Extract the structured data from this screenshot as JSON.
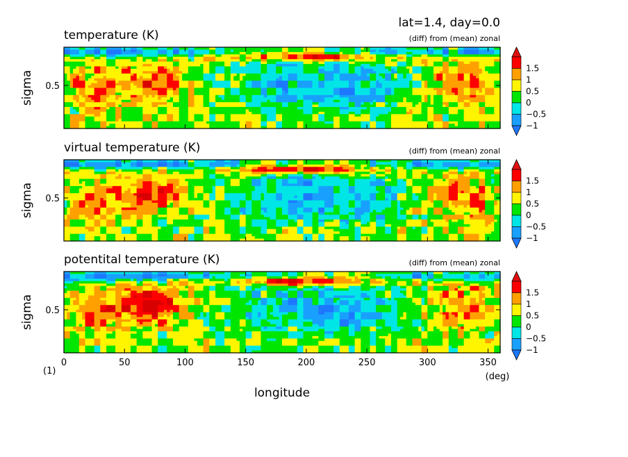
{
  "header": {
    "info": "lat=1.4, day=0.0",
    "corner_label": "(1)"
  },
  "axes": {
    "xlabel": "longitude",
    "xunit": "(deg)",
    "ylabel": "sigma",
    "xticks": [
      0,
      50,
      100,
      150,
      200,
      250,
      300,
      350
    ],
    "xtick_labels": [
      "0",
      "50",
      "100",
      "150",
      "200",
      "250",
      "300",
      "350"
    ],
    "ytick_label": "0.5"
  },
  "palette": {
    "levels": [
      -1.5,
      -1,
      -0.5,
      0,
      0.5,
      1,
      1.5
    ],
    "labels": [
      "1.5",
      "1",
      "0.5",
      "0",
      "−0.5",
      "−1"
    ],
    "colors": [
      "#1e78ff",
      "#19a0ff",
      "#00e6e6",
      "#00e600",
      "#fff500",
      "#ffa000",
      "#ff0000",
      "#d80000"
    ],
    "low_arrow_color": "#1e78ff",
    "high_arrow_color": "#e01010"
  },
  "chart_data": [
    {
      "type": "heatmap",
      "title": "temperature (K)",
      "subtitle": "(diff) from (mean) zonal",
      "xlabel": "longitude",
      "ylabel": "sigma",
      "xlim": [
        0,
        360
      ],
      "ylim": [
        1,
        0
      ],
      "variant": 0
    },
    {
      "type": "heatmap",
      "title": "virtual temperature (K)",
      "subtitle": "(diff) from (mean) zonal",
      "xlabel": "longitude",
      "ylabel": "sigma",
      "xlim": [
        0,
        360
      ],
      "ylim": [
        1,
        0
      ],
      "variant": 1
    },
    {
      "type": "heatmap",
      "title": "potentital temperature (K)",
      "subtitle": "(diff) from (mean) zonal",
      "xlabel": "longitude",
      "ylabel": "sigma",
      "xlim": [
        0,
        360
      ],
      "ylim": [
        1,
        0
      ],
      "variant": 2
    }
  ]
}
